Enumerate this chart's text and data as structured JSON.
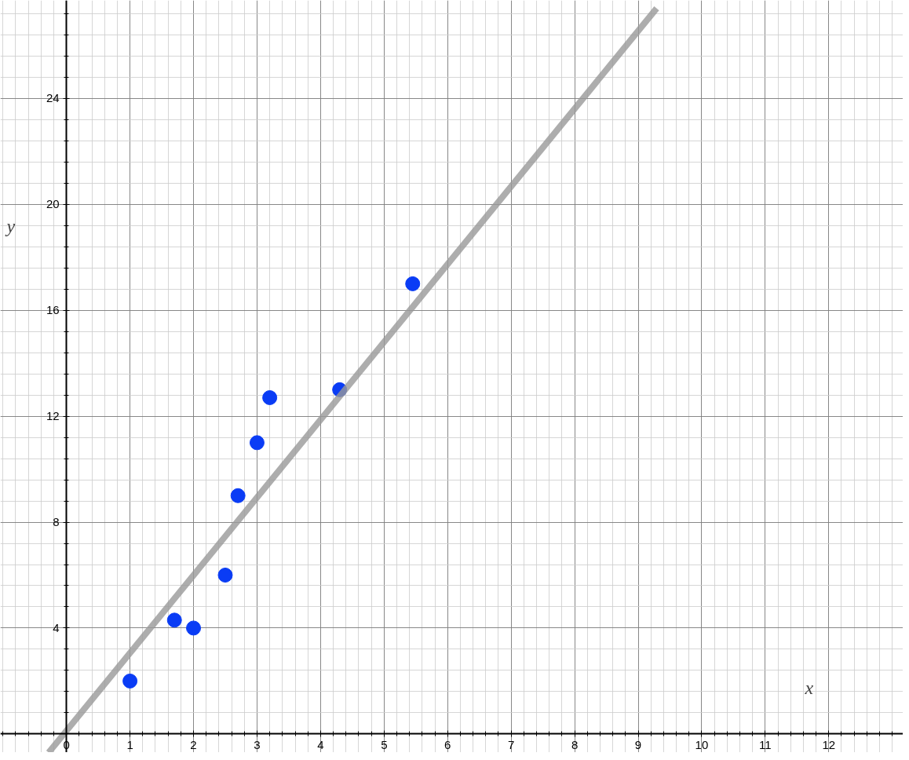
{
  "chart_data": {
    "type": "scatter",
    "xlabel": "x",
    "ylabel": "y",
    "xlim": [
      -1.04,
      13.17
    ],
    "ylim": [
      -0.7,
      27.7
    ],
    "xticks": [
      0,
      1,
      2,
      3,
      4,
      5,
      6,
      7,
      8,
      9,
      10,
      11,
      12
    ],
    "yticks": [
      4,
      8,
      12,
      16,
      20,
      24
    ],
    "grid": true,
    "marker": "circle",
    "series": [
      {
        "color": "#0a3cf5",
        "x": [
          1,
          1.7,
          2,
          2.5,
          2.7,
          3,
          3.2,
          4.3,
          5.45
        ],
        "values": [
          2,
          4.3,
          4,
          6,
          9,
          11,
          12.7,
          13,
          17
        ]
      },
      {
        "type": "line",
        "marker": "none",
        "color": "#999999",
        "x": [
          -0.28,
          9.29
        ],
        "values": [
          -0.7,
          27.4
        ]
      }
    ]
  }
}
